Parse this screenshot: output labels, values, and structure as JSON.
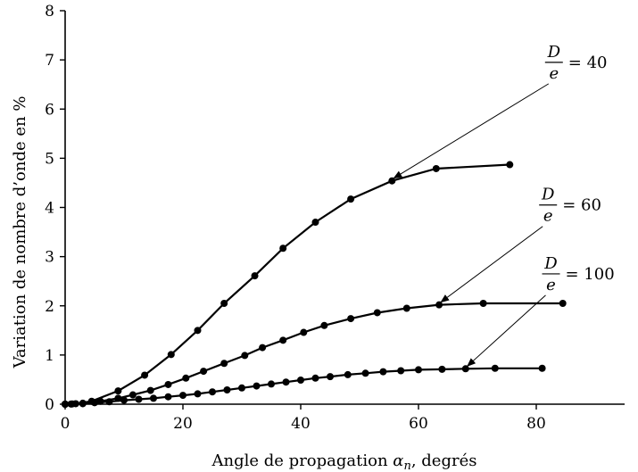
{
  "chart_data": {
    "type": "line",
    "xlabel": "Angle de propagation αn, degrés",
    "xlabel_parts": {
      "pre": "Angle de propagation ",
      "symbol": "α",
      "subscript": "n",
      "post": ", degrés"
    },
    "ylabel": "Variation de nombre d’onde en %",
    "xlim": [
      0,
      95
    ],
    "ylim": [
      0,
      8
    ],
    "xticks": [
      "0",
      "20",
      "40",
      "60",
      "80"
    ],
    "yticks": [
      "0",
      "1",
      "2",
      "3",
      "4",
      "5",
      "6",
      "7",
      "8"
    ],
    "grid": false,
    "series": [
      {
        "name": "D/e = 40",
        "label_num": "D",
        "label_den": "e",
        "label_eq": "= 40",
        "points": [
          [
            0,
            0
          ],
          [
            1.8,
            0.01
          ],
          [
            4.5,
            0.06
          ],
          [
            9,
            0.27
          ],
          [
            13.5,
            0.59
          ],
          [
            18,
            1.01
          ],
          [
            22.5,
            1.5
          ],
          [
            27,
            2.05
          ],
          [
            32.2,
            2.61
          ],
          [
            37,
            3.17
          ],
          [
            42.5,
            3.7
          ],
          [
            48.5,
            4.17
          ],
          [
            55.5,
            4.54
          ],
          [
            63,
            4.79
          ],
          [
            75.5,
            4.87
          ]
        ]
      },
      {
        "name": "D/e = 60",
        "label_num": "D",
        "label_den": "e",
        "label_eq": "= 60",
        "points": [
          [
            0,
            0
          ],
          [
            1.2,
            0.005
          ],
          [
            3,
            0.02
          ],
          [
            6,
            0.06
          ],
          [
            9,
            0.12
          ],
          [
            11.5,
            0.19
          ],
          [
            14.5,
            0.28
          ],
          [
            17.5,
            0.4
          ],
          [
            20.5,
            0.53
          ],
          [
            23.5,
            0.67
          ],
          [
            27,
            0.83
          ],
          [
            30.5,
            0.99
          ],
          [
            33.5,
            1.15
          ],
          [
            37,
            1.3
          ],
          [
            40.5,
            1.46
          ],
          [
            44,
            1.6
          ],
          [
            48.5,
            1.74
          ],
          [
            53,
            1.86
          ],
          [
            58,
            1.95
          ],
          [
            63.5,
            2.02
          ],
          [
            71,
            2.05
          ],
          [
            84.5,
            2.05
          ]
        ]
      },
      {
        "name": "D/e = 100",
        "label_num": "D",
        "label_den": "e",
        "label_eq": "= 100",
        "points": [
          [
            0,
            0
          ],
          [
            1,
            0.003
          ],
          [
            3,
            0.01
          ],
          [
            5,
            0.03
          ],
          [
            7.5,
            0.05
          ],
          [
            10,
            0.08
          ],
          [
            12.5,
            0.1
          ],
          [
            15,
            0.12
          ],
          [
            17.5,
            0.15
          ],
          [
            20,
            0.18
          ],
          [
            22.5,
            0.21
          ],
          [
            25,
            0.25
          ],
          [
            27.5,
            0.29
          ],
          [
            30,
            0.33
          ],
          [
            32.5,
            0.37
          ],
          [
            35,
            0.41
          ],
          [
            37.5,
            0.45
          ],
          [
            40,
            0.49
          ],
          [
            42.5,
            0.53
          ],
          [
            45,
            0.56
          ],
          [
            48,
            0.6
          ],
          [
            51,
            0.63
          ],
          [
            54,
            0.66
          ],
          [
            57,
            0.68
          ],
          [
            60,
            0.7
          ],
          [
            64,
            0.71
          ],
          [
            68,
            0.72
          ],
          [
            73,
            0.73
          ],
          [
            81,
            0.73
          ]
        ]
      }
    ],
    "annotations": [
      {
        "series": 0,
        "text_x": 83,
        "text_y": 6.95,
        "arrow_to": [
          55.5,
          4.54
        ]
      },
      {
        "series": 1,
        "text_x": 82,
        "text_y": 4.05,
        "arrow_to": [
          63.5,
          2.02
        ]
      },
      {
        "series": 2,
        "text_x": 82.5,
        "text_y": 2.65,
        "arrow_to": [
          68,
          0.72
        ]
      }
    ]
  }
}
